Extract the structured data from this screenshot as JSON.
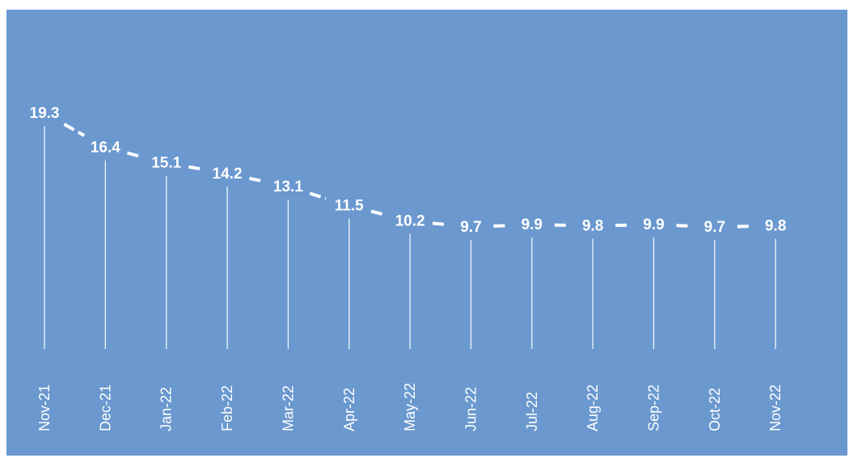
{
  "chart_data": {
    "type": "line",
    "categories": [
      "Nov-21",
      "Dec-21",
      "Jan-22",
      "Feb-22",
      "Mar-22",
      "Apr-22",
      "May-22",
      "Jun-22",
      "Jul-22",
      "Aug-22",
      "Sep-22",
      "Oct-22",
      "Nov-22"
    ],
    "values": [
      19.3,
      16.4,
      15.1,
      14.2,
      13.1,
      11.5,
      10.2,
      9.7,
      9.9,
      9.8,
      9.9,
      9.7,
      9.8
    ],
    "data_labels": [
      "19.3",
      "16.4",
      "15.1",
      "14.2",
      "13.1",
      "11.5",
      "10.2",
      "9.7",
      "9.9",
      "9.8",
      "9.9",
      "9.7",
      "9.8"
    ],
    "title": "",
    "xlabel": "",
    "ylabel": "",
    "line_style": "dashed",
    "drop_lines": true,
    "grid": false,
    "legend": "none",
    "colors": {
      "background": "#6a98cf",
      "line": "#ffffff",
      "text": "#ffffff",
      "drop_line": "#f2f6fb"
    }
  }
}
